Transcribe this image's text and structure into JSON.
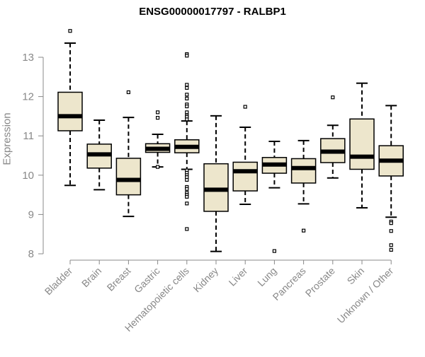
{
  "chart_data": {
    "type": "boxplot",
    "title": "ENSG00000017797 - RALBP1",
    "xlabel": "",
    "ylabel": "Expression",
    "ylim": [
      8,
      13.8
    ],
    "yticks": [
      8,
      9,
      10,
      11,
      12,
      13
    ],
    "box_fill": "#EDE6CC",
    "axis_color": "#888888",
    "categories": [
      "Bladder",
      "Brain",
      "Breast",
      "Gastric",
      "Hematopoietic cells",
      "Kidney",
      "Liver",
      "Lung",
      "Pancreas",
      "Prostate",
      "Skin",
      "Unknown / Other"
    ],
    "boxes": [
      {
        "lower": 9.74,
        "q1": 11.13,
        "median": 11.5,
        "q3": 12.11,
        "upper": 13.36,
        "outliers": [
          13.67
        ]
      },
      {
        "lower": 9.63,
        "q1": 10.18,
        "median": 10.53,
        "q3": 10.79,
        "upper": 11.4,
        "outliers": []
      },
      {
        "lower": 8.95,
        "q1": 9.5,
        "median": 9.88,
        "q3": 10.43,
        "upper": 11.47,
        "outliers": [
          12.11
        ]
      },
      {
        "lower": 10.21,
        "q1": 10.58,
        "median": 10.67,
        "q3": 10.8,
        "upper": 11.04,
        "outliers": [
          11.6,
          11.46,
          10.21
        ]
      },
      {
        "lower": 10.15,
        "q1": 10.57,
        "median": 10.72,
        "q3": 10.9,
        "upper": 11.38,
        "outliers": [
          13.08,
          13.04,
          12.3,
          12.22,
          12.05,
          11.95,
          11.8,
          11.75,
          11.6,
          11.52,
          11.48,
          11.42,
          10.12,
          10.06,
          10.0,
          9.95,
          9.88,
          9.7,
          9.65,
          9.55,
          9.5,
          9.45,
          9.28,
          8.63
        ]
      },
      {
        "lower": 8.06,
        "q1": 9.08,
        "median": 9.63,
        "q3": 10.29,
        "upper": 11.51,
        "outliers": []
      },
      {
        "lower": 9.26,
        "q1": 9.6,
        "median": 10.1,
        "q3": 10.33,
        "upper": 11.22,
        "outliers": [
          11.74
        ]
      },
      {
        "lower": 9.68,
        "q1": 10.05,
        "median": 10.27,
        "q3": 10.45,
        "upper": 10.86,
        "outliers": [
          8.07
        ]
      },
      {
        "lower": 9.27,
        "q1": 9.8,
        "median": 10.18,
        "q3": 10.42,
        "upper": 10.88,
        "outliers": [
          8.59
        ]
      },
      {
        "lower": 9.93,
        "q1": 10.32,
        "median": 10.6,
        "q3": 10.93,
        "upper": 11.27,
        "outliers": [
          11.98
        ]
      },
      {
        "lower": 9.17,
        "q1": 10.15,
        "median": 10.47,
        "q3": 11.43,
        "upper": 12.34,
        "outliers": []
      },
      {
        "lower": 8.93,
        "q1": 9.98,
        "median": 10.37,
        "q3": 10.75,
        "upper": 11.77,
        "outliers": [
          8.82,
          8.78,
          8.58,
          8.22,
          8.1
        ]
      }
    ]
  }
}
